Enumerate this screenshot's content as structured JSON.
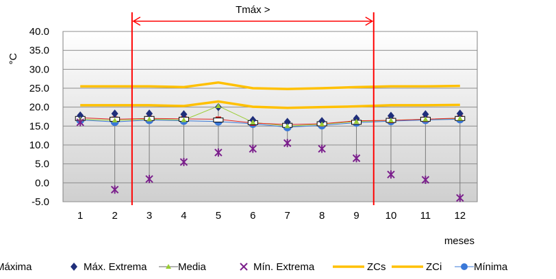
{
  "chart_data": {
    "type": "line",
    "title": "",
    "xlabel": "meses",
    "ylabel": "°C",
    "categories": [
      "1",
      "2",
      "3",
      "4",
      "5",
      "6",
      "7",
      "8",
      "9",
      "10",
      "11",
      "12"
    ],
    "ylim": [
      -5.0,
      40.0
    ],
    "yticks": [
      "40.0",
      "35.0",
      "30.0",
      "25.0",
      "20.0",
      "15.0",
      "10.0",
      "5.0",
      "0.0",
      "-5.0"
    ],
    "grid": true,
    "legend_position": "bottom",
    "annotation": {
      "text": "Tmáx >",
      "from_category": "2",
      "to_category": "9",
      "color": "#ff0000"
    },
    "series": [
      {
        "name": "Máxima",
        "style": "box",
        "color": "#000000",
        "values": [
          17.0,
          16.8,
          17.0,
          16.8,
          16.6,
          15.9,
          15.2,
          15.6,
          16.0,
          16.5,
          16.8,
          17.0
        ]
      },
      {
        "name": "Máx. Extrema",
        "style": "diamond",
        "color": "#1f2e7a",
        "values": [
          17.8,
          18.3,
          18.3,
          18.1,
          20.0,
          16.6,
          16.1,
          16.3,
          17.0,
          17.7,
          18.1,
          18.3
        ]
      },
      {
        "name": "Media",
        "style": "triangle-line",
        "color": "#99cc33",
        "values": [
          16.8,
          16.5,
          16.8,
          16.6,
          20.3,
          16.0,
          15.0,
          15.5,
          16.2,
          16.5,
          16.8,
          17.0
        ]
      },
      {
        "name": "Mín. Extrema",
        "style": "star",
        "color": "#7b1f8c",
        "values": [
          16.0,
          -1.8,
          1.0,
          5.5,
          8.0,
          9.0,
          10.5,
          9.0,
          6.5,
          2.2,
          0.8,
          -4.0
        ]
      },
      {
        "name": "ZCs",
        "style": "thick-line",
        "color": "#ffc000",
        "values": [
          25.5,
          25.5,
          25.5,
          25.3,
          26.5,
          25.0,
          24.8,
          25.0,
          25.3,
          25.5,
          25.5,
          25.6
        ]
      },
      {
        "name": "ZCi",
        "style": "thick-line",
        "color": "#ffc000",
        "values": [
          20.5,
          20.5,
          20.5,
          20.3,
          21.5,
          20.1,
          19.8,
          20.0,
          20.2,
          20.5,
          20.5,
          20.6
        ]
      },
      {
        "name": "Mínima",
        "style": "circle-line",
        "color": "#3a78d8",
        "values": [
          16.6,
          16.1,
          16.6,
          16.4,
          16.2,
          15.6,
          14.7,
          15.2,
          15.9,
          16.3,
          16.6,
          16.8
        ]
      },
      {
        "name": "",
        "style": "red-square-line",
        "color": "#e02020",
        "values": [
          17.2,
          16.8,
          17.0,
          16.9,
          16.8,
          15.8,
          15.4,
          15.6,
          16.4,
          16.5,
          16.8,
          17.1
        ]
      }
    ]
  }
}
